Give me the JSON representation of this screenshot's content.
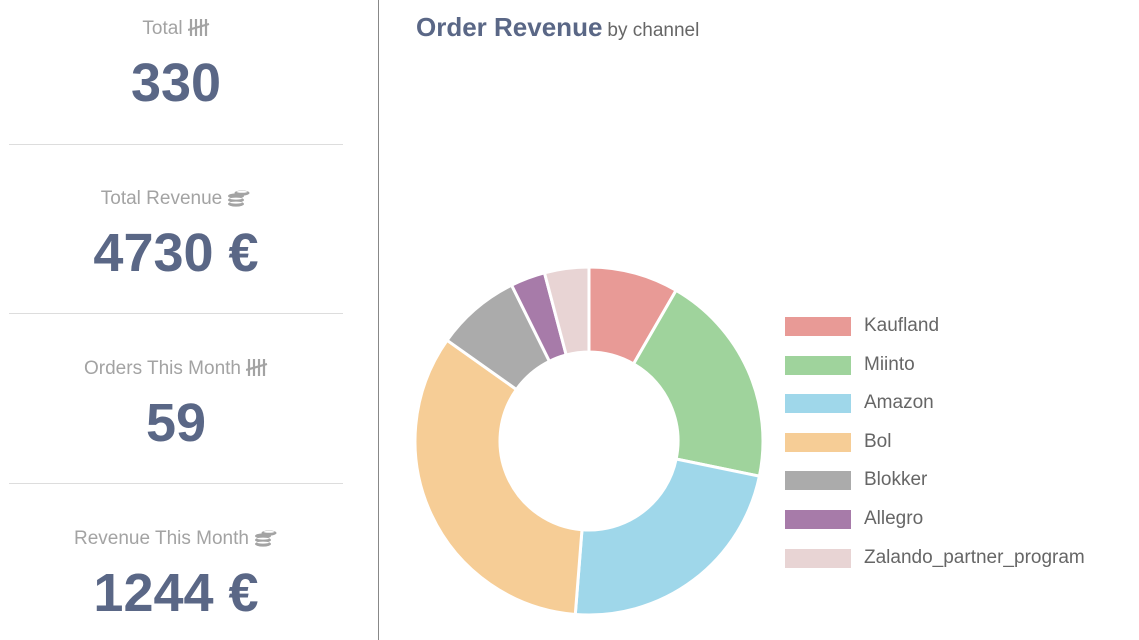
{
  "stats": [
    {
      "label": "Total",
      "icon": "tally-icon",
      "value": "330"
    },
    {
      "label": "Total Revenue",
      "icon": "coins-icon",
      "value": "4730 €"
    },
    {
      "label": "Orders This Month",
      "icon": "tally-icon",
      "value": "59"
    },
    {
      "label": "Revenue This Month",
      "icon": "coins-icon",
      "value": "1244 €"
    }
  ],
  "chart": {
    "title": "Order Revenue",
    "subtitle": "by channel"
  },
  "chart_data": {
    "type": "pie",
    "variant": "doughnut",
    "categories": [
      "Kaufland",
      "Miinto",
      "Amazon",
      "Bol",
      "Blokker",
      "Allegro",
      "Zalando_partner_program"
    ],
    "values": [
      8.3,
      19.8,
      22.9,
      33.4,
      7.8,
      3.2,
      4.1
    ],
    "value_unit": "percent of revenue (estimated)",
    "colors": [
      "#e89a96",
      "#9fd39c",
      "#9fd7ea",
      "#f6cd96",
      "#ababab",
      "#a77ba9",
      "#e8d4d4"
    ],
    "legend": "right",
    "title": "Order Revenue",
    "subtitle": "by channel"
  }
}
